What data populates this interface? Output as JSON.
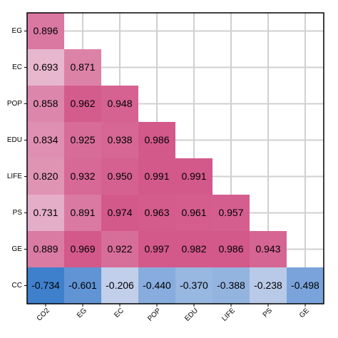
{
  "chart_data": {
    "type": "heatmap",
    "rows": [
      "EG",
      "EC",
      "POP",
      "EDU",
      "LIFE",
      "PS",
      "GE",
      "CC"
    ],
    "columns": [
      "CO2",
      "EG",
      "EC",
      "POP",
      "EDU",
      "LIFE",
      "PS",
      "GE"
    ],
    "values": [
      [
        0.896
      ],
      [
        0.693,
        0.871
      ],
      [
        0.858,
        0.962,
        0.948
      ],
      [
        0.834,
        0.925,
        0.938,
        0.986
      ],
      [
        0.82,
        0.932,
        0.95,
        0.991,
        0.991
      ],
      [
        0.731,
        0.891,
        0.974,
        0.963,
        0.961,
        0.957
      ],
      [
        0.889,
        0.969,
        0.922,
        0.997,
        0.982,
        0.986,
        0.943
      ],
      [
        -0.734,
        -0.601,
        -0.206,
        -0.44,
        -0.37,
        -0.388,
        -0.238,
        -0.498
      ]
    ],
    "value_labels": [
      [
        "0.896"
      ],
      [
        "0.693",
        "0.871"
      ],
      [
        "0.858",
        "0.962",
        "0.948"
      ],
      [
        "0.834",
        "0.925",
        "0.938",
        "0.986"
      ],
      [
        "0.820",
        "0.932",
        "0.950",
        "0.991",
        "0.991"
      ],
      [
        "0.731",
        "0.891",
        "0.974",
        "0.963",
        "0.961",
        "0.957"
      ],
      [
        "0.889",
        "0.969",
        "0.922",
        "0.997",
        "0.982",
        "0.986",
        "0.943"
      ],
      [
        "-0.734",
        "-0.601",
        "-0.206",
        "-0.440",
        "-0.370",
        "-0.388",
        "-0.238",
        "-0.498"
      ]
    ],
    "colors": {
      "negative": "#3f80cc",
      "zero": "#f3eef6",
      "positive": "#d3598a"
    },
    "grid": true
  }
}
